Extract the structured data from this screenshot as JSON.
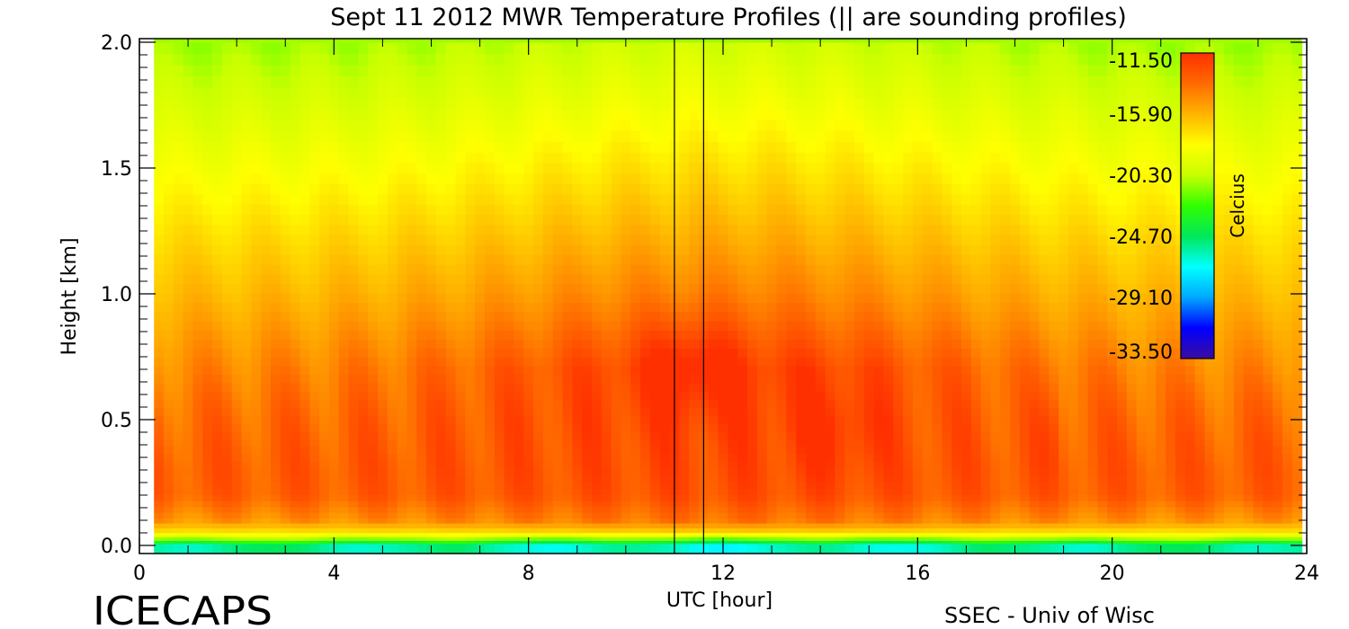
{
  "chart_data": {
    "type": "heatmap",
    "title": "Sept 11 2012 MWR Temperature Profiles (|| are sounding profiles)",
    "xlabel": "UTC [hour]",
    "ylabel": "Height [km]",
    "xlim": [
      0,
      24
    ],
    "ylim": [
      0,
      2
    ],
    "x_ticks": [
      "0",
      "4",
      "8",
      "12",
      "16",
      "20",
      "24"
    ],
    "y_ticks": [
      "0.0",
      "0.5",
      "1.0",
      "1.5",
      "2.0"
    ],
    "x_tick_values": [
      0,
      4,
      8,
      12,
      16,
      20,
      24
    ],
    "y_tick_values": [
      0,
      0.5,
      1.0,
      1.5,
      2.0
    ],
    "data_x_range": [
      0.3,
      23.9
    ],
    "colorbar": {
      "label": "Celcius",
      "ticks": [
        "-11.50",
        "-15.90",
        "-20.30",
        "-24.70",
        "-29.10",
        "-33.50"
      ],
      "tick_values": [
        -11.5,
        -15.9,
        -20.3,
        -24.7,
        -29.1,
        -33.5
      ],
      "range": [
        -33.5,
        -11.5
      ],
      "colors": [
        "#3a0ca0",
        "#0000ff",
        "#00a8ff",
        "#00ffff",
        "#00e85a",
        "#30ff00",
        "#c8ff00",
        "#ffff00",
        "#ffb400",
        "#ff6a00",
        "#ff3000"
      ]
    },
    "sounding_profiles_utc": [
      11.0,
      11.6
    ],
    "grid": false,
    "temperature_celsius": {
      "heights_km": [
        0,
        0.02,
        0.05,
        0.1,
        0.2,
        0.3,
        0.4,
        0.5,
        0.6,
        0.7,
        0.8,
        0.9,
        1.0,
        1.2,
        1.4,
        1.6,
        1.8,
        2.0
      ],
      "profile_at_00utc": [
        -25,
        -21,
        -17.5,
        -15,
        -13.3,
        -13.2,
        -13.4,
        -13.7,
        -14.1,
        -14.6,
        -15.1,
        -15.6,
        -16.1,
        -17,
        -18,
        -19,
        -20,
        -21
      ],
      "profile_at_12utc": [
        -26,
        -22,
        -17,
        -14,
        -12.7,
        -12.5,
        -12.4,
        -12.2,
        -12.1,
        -12.0,
        -12.8,
        -13.6,
        -14.3,
        -15.5,
        -16.6,
        -17.7,
        -18.8,
        -19.9
      ]
    }
  },
  "brand": "ICECAPS",
  "credit": "SSEC - Univ of Wisc"
}
